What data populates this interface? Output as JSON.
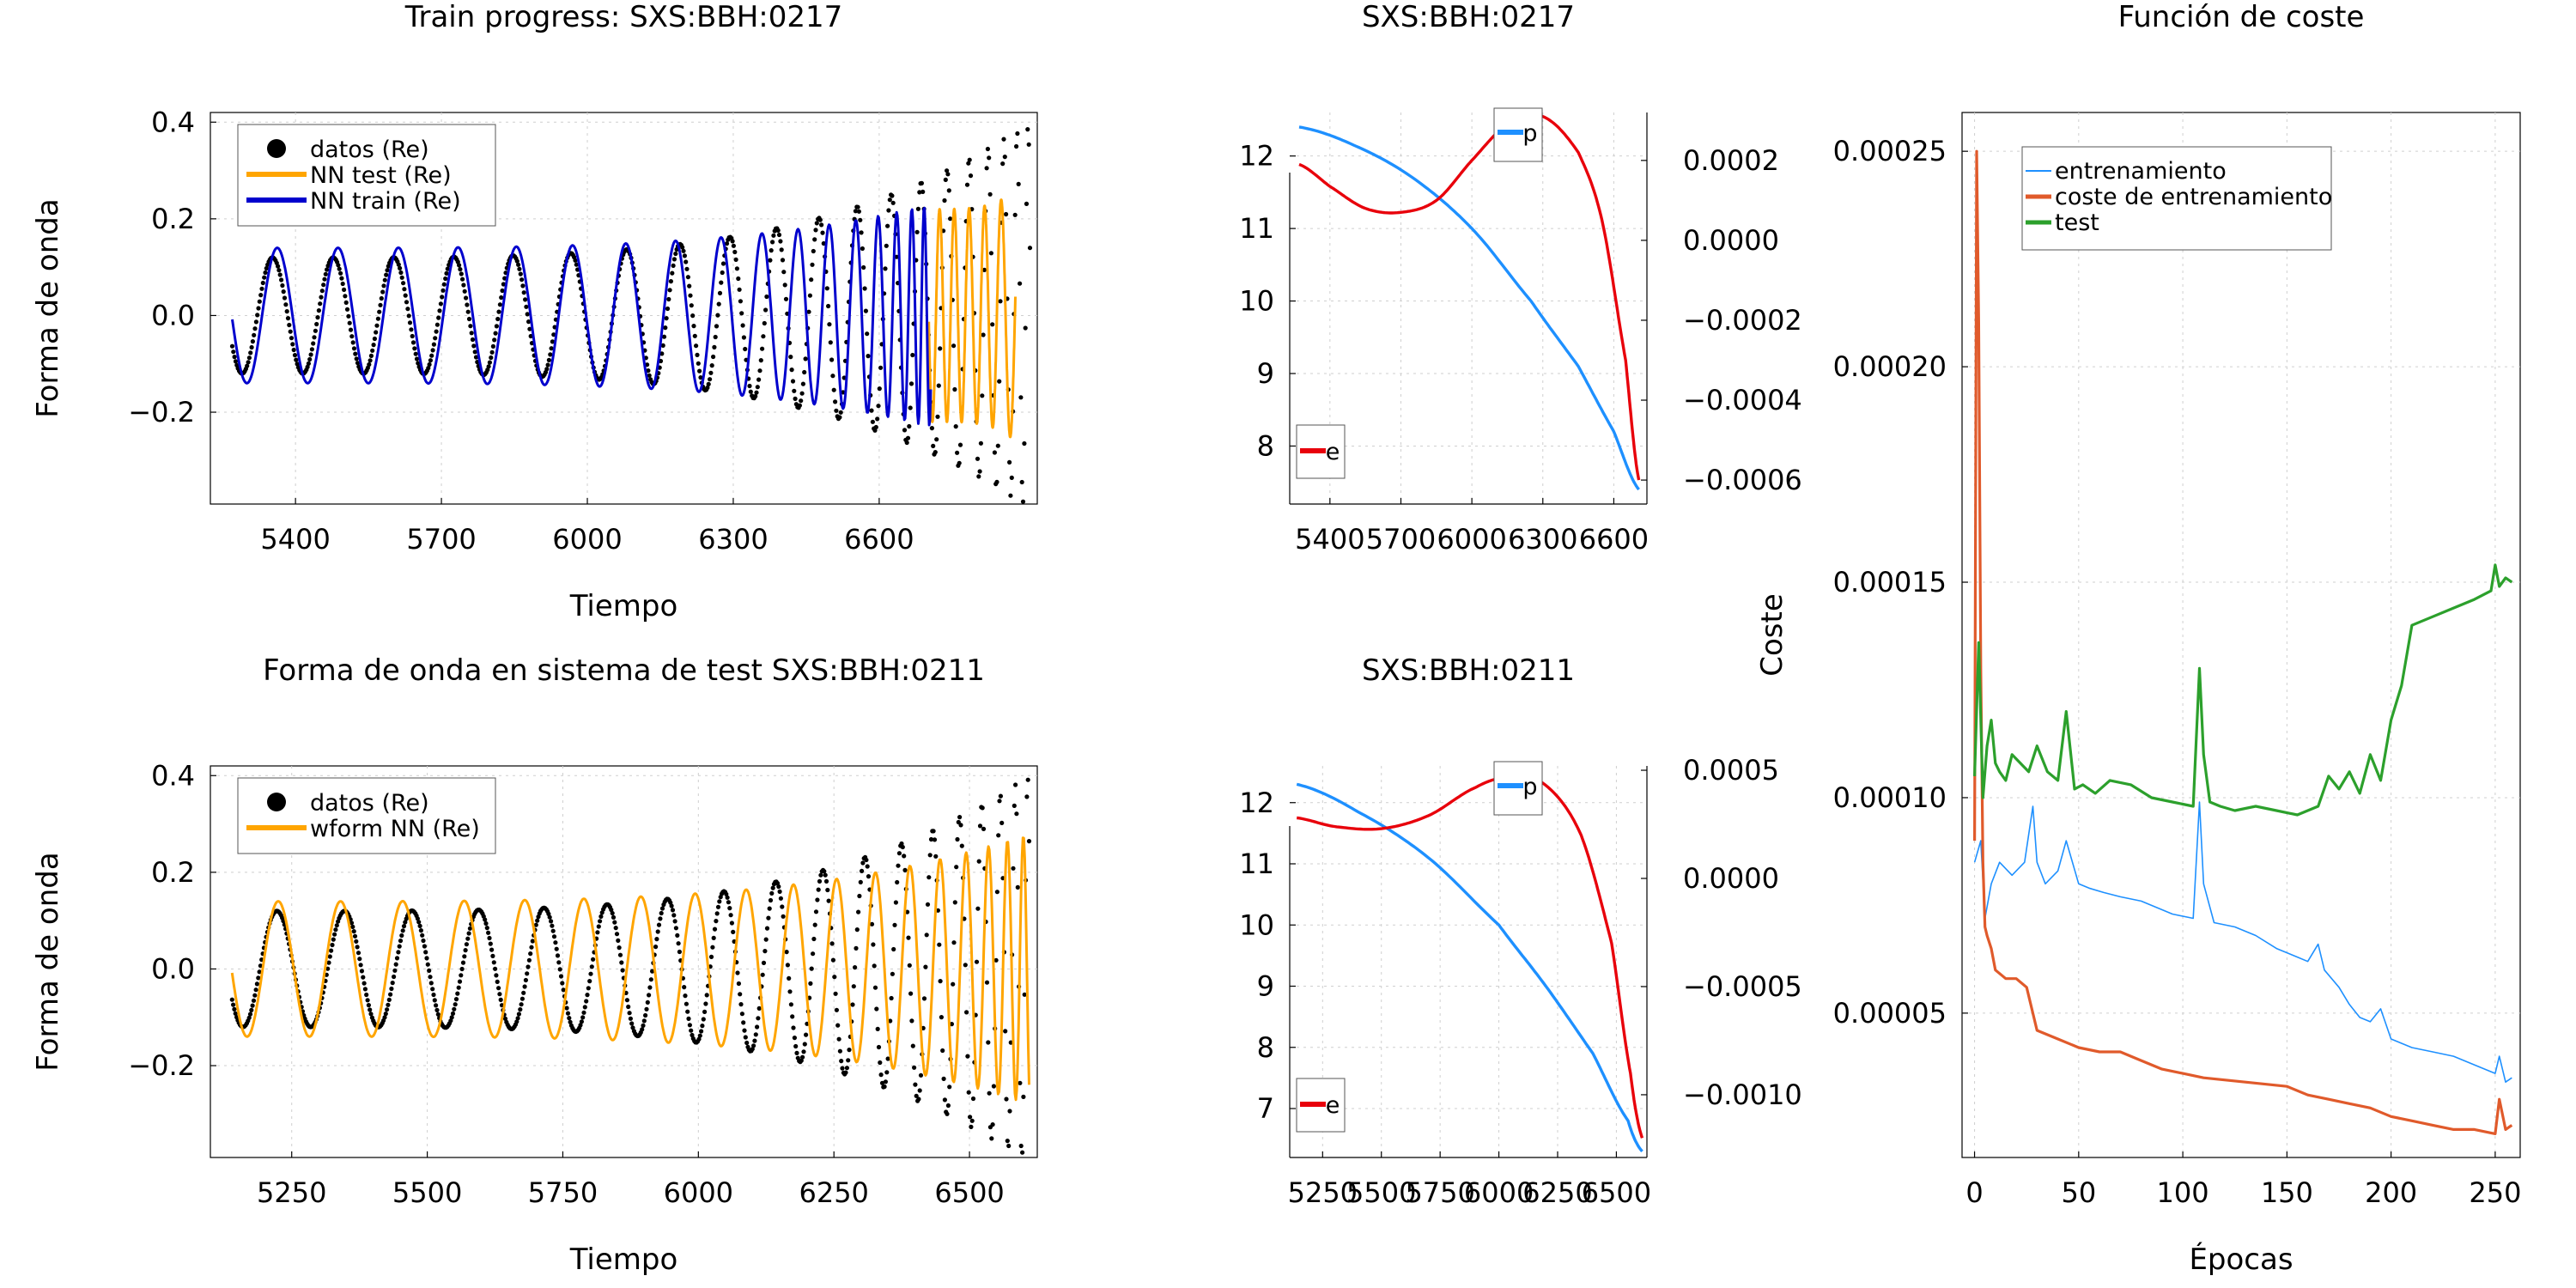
{
  "chart_data": [
    {
      "type": "line",
      "title": "Train progress: SXS:BBH:0217",
      "xlabel": "Tiempo",
      "ylabel": "Forma de onda",
      "xlim": [
        5225,
        6925
      ],
      "ylim": [
        -0.39,
        0.42
      ],
      "xticks": [
        "5400",
        "5700",
        "6000",
        "6300",
        "6600"
      ],
      "yticks": [
        "−0.2",
        "0.0",
        "0.2",
        "0.4"
      ],
      "grid": true,
      "legend_position": "top-left",
      "legend": [
        "datos (Re)",
        "NN test (Re)",
        "NN train (Re)"
      ],
      "series": [
        {
          "name": "datos (Re)",
          "kind": "points",
          "color": "#000000",
          "x_range": [
            5270,
            6910
          ],
          "amplitude": [
            0.12,
            0.4
          ],
          "periods": [
            125,
            20
          ]
        },
        {
          "name": "NN test (Re)",
          "kind": "line",
          "color": "#FFA500",
          "x_range": [
            6702,
            6880
          ],
          "amplitude": [
            0.22,
            0.26
          ],
          "periods": [
            30,
            40
          ]
        },
        {
          "name": "NN train (Re)",
          "kind": "line",
          "color": "#0000CD",
          "x_range": [
            5270,
            6706
          ],
          "amplitude": [
            0.14,
            0.23
          ],
          "periods": [
            125,
            20
          ]
        }
      ]
    },
    {
      "type": "line",
      "title": "SXS:BBH:0217",
      "xlim": [
        5230,
        6740
      ],
      "xticks": [
        "5400",
        "5700",
        "6000",
        "6300",
        "6600"
      ],
      "ylim_left": [
        7.2,
        12.6
      ],
      "yticks_left": [
        "8",
        "9",
        "10",
        "11",
        "12"
      ],
      "ylim_right": [
        -0.00066,
        0.00032
      ],
      "yticks_right": [
        "0.0002",
        "0.0000",
        "−0.0002",
        "−0.0004",
        "−0.0006"
      ],
      "grid": true,
      "legend": [
        "p",
        "e"
      ],
      "series": [
        {
          "name": "p",
          "color": "#1E90FF",
          "axis": "left",
          "x": [
            5270,
            5500,
            5750,
            6000,
            6250,
            6450,
            6600,
            6706
          ],
          "y": [
            12.4,
            12.15,
            11.7,
            11.0,
            10.0,
            9.1,
            8.2,
            7.4
          ]
        },
        {
          "name": "e",
          "color": "#E8000B",
          "axis": "right",
          "x": [
            5270,
            5400,
            5550,
            5700,
            5850,
            6000,
            6150,
            6300,
            6450,
            6550,
            6650,
            6706
          ],
          "y": [
            0.00019,
            0.000135,
            8e-05,
            7e-05,
            0.0001,
            0.0002,
            0.00029,
            0.00031,
            0.00022,
            5e-05,
            -0.0003,
            -0.0006
          ]
        }
      ]
    },
    {
      "type": "line",
      "title": "Forma de onda en sistema de test SXS:BBH:0211",
      "xlabel": "Tiempo",
      "ylabel": "Forma de onda",
      "xlim": [
        5100,
        6625
      ],
      "ylim": [
        -0.39,
        0.42
      ],
      "xticks": [
        "5250",
        "5500",
        "5750",
        "6000",
        "6250",
        "6500"
      ],
      "yticks": [
        "−0.2",
        "0.0",
        "0.2",
        "0.4"
      ],
      "grid": true,
      "legend_position": "top-left",
      "legend": [
        "datos (Re)",
        "wform NN (Re)"
      ],
      "series": [
        {
          "name": "datos (Re)",
          "kind": "points",
          "color": "#000000",
          "x_range": [
            5140,
            6610
          ],
          "amplitude": [
            0.12,
            0.4
          ],
          "periods": [
            125,
            20
          ]
        },
        {
          "name": "wform NN (Re)",
          "kind": "line",
          "color": "#FFA500",
          "x_range": [
            5140,
            6610
          ],
          "amplitude": [
            0.14,
            0.28
          ],
          "periods": [
            115,
            25
          ]
        }
      ]
    },
    {
      "type": "line",
      "title": "SXS:BBH:0211",
      "xlim": [
        5110,
        6630
      ],
      "xticks": [
        "5250",
        "5500",
        "5750",
        "6000",
        "6250",
        "6500"
      ],
      "ylim_left": [
        6.2,
        12.6
      ],
      "yticks_left": [
        "7",
        "8",
        "9",
        "10",
        "11",
        "12"
      ],
      "ylim_right": [
        -0.00129,
        0.00052
      ],
      "yticks_right": [
        "0.0005",
        "0.0000",
        "−0.0005",
        "−0.0010"
      ],
      "grid": true,
      "legend": [
        "p",
        "e"
      ],
      "series": [
        {
          "name": "p",
          "color": "#1E90FF",
          "axis": "left",
          "x": [
            5140,
            5400,
            5700,
            6000,
            6200,
            6400,
            6550,
            6610
          ],
          "y": [
            12.3,
            11.85,
            11.1,
            10.0,
            9.0,
            7.9,
            6.8,
            6.3
          ]
        },
        {
          "name": "e",
          "color": "#E8000B",
          "axis": "right",
          "x": [
            5140,
            5300,
            5500,
            5700,
            5900,
            6050,
            6200,
            6350,
            6480,
            6560,
            6610
          ],
          "y": [
            0.00028,
            0.00024,
            0.00023,
            0.00029,
            0.00042,
            0.00047,
            0.00043,
            0.0002,
            -0.0003,
            -0.0009,
            -0.0012
          ]
        }
      ]
    },
    {
      "type": "line",
      "title": "Función de coste",
      "xlabel": "Épocas",
      "ylabel": "Coste",
      "xlim": [
        -6,
        262
      ],
      "ylim": [
        1.65e-05,
        0.000259
      ],
      "xticks": [
        "0",
        "50",
        "100",
        "150",
        "200",
        "250"
      ],
      "yticks": [
        "0.00005",
        "0.00010",
        "0.00015",
        "0.00020",
        "0.00025"
      ],
      "grid": true,
      "legend_position": "top-right",
      "legend": [
        "entrenamiento",
        "coste de entrenamiento",
        "test"
      ],
      "series": [
        {
          "name": "entrenamiento",
          "color": "#1E90FF",
          "x": [
            0,
            3,
            5,
            8,
            12,
            18,
            24,
            28,
            30,
            34,
            40,
            44,
            50,
            55,
            62,
            70,
            80,
            95,
            105,
            108,
            110,
            115,
            125,
            135,
            145,
            155,
            160,
            165,
            168,
            175,
            180,
            185,
            190,
            195,
            200,
            210,
            220,
            230,
            240,
            250,
            252,
            255,
            258
          ],
          "y": [
            8.5e-05,
            9e-05,
            7.2e-05,
            8e-05,
            8.5e-05,
            8.2e-05,
            8.5e-05,
            9.8e-05,
            8.5e-05,
            8e-05,
            8.3e-05,
            9e-05,
            8e-05,
            7.9e-05,
            7.8e-05,
            7.7e-05,
            7.6e-05,
            7.3e-05,
            7.2e-05,
            9.9e-05,
            8e-05,
            7.1e-05,
            7e-05,
            6.8e-05,
            6.5e-05,
            6.3e-05,
            6.2e-05,
            6.6e-05,
            6e-05,
            5.6e-05,
            5.2e-05,
            4.9e-05,
            4.8e-05,
            5.1e-05,
            4.4e-05,
            4.2e-05,
            4.1e-05,
            4e-05,
            3.8e-05,
            3.6e-05,
            4e-05,
            3.4e-05,
            3.5e-05
          ]
        },
        {
          "name": "coste de entrenamiento",
          "color": "#E05A2B",
          "x": [
            0,
            1,
            2,
            3,
            4,
            5,
            6,
            8,
            10,
            15,
            20,
            25,
            30,
            40,
            50,
            60,
            70,
            80,
            90,
            100,
            110,
            130,
            150,
            160,
            170,
            180,
            190,
            200,
            210,
            220,
            230,
            240,
            250,
            252,
            255,
            258
          ],
          "y": [
            9e-05,
            0.00025,
            0.00021,
            0.00013,
            8.5e-05,
            7e-05,
            6.8e-05,
            6.5e-05,
            6e-05,
            5.8e-05,
            5.8e-05,
            5.6e-05,
            4.6e-05,
            4.4e-05,
            4.2e-05,
            4.1e-05,
            4.1e-05,
            3.9e-05,
            3.7e-05,
            3.6e-05,
            3.5e-05,
            3.4e-05,
            3.3e-05,
            3.1e-05,
            3e-05,
            2.9e-05,
            2.8e-05,
            2.6e-05,
            2.5e-05,
            2.4e-05,
            2.3e-05,
            2.3e-05,
            2.2e-05,
            3e-05,
            2.3e-05,
            2.4e-05
          ]
        },
        {
          "name": "test",
          "color": "#2CA02C",
          "x": [
            0,
            2,
            4,
            6,
            8,
            10,
            12,
            15,
            18,
            22,
            26,
            30,
            35,
            40,
            44,
            48,
            52,
            58,
            65,
            75,
            85,
            95,
            105,
            108,
            110,
            113,
            118,
            125,
            135,
            145,
            155,
            165,
            170,
            175,
            180,
            185,
            190,
            195,
            200,
            205,
            210,
            220,
            230,
            240,
            248,
            250,
            252,
            255,
            258
          ],
          "y": [
            0.000105,
            0.000136,
            0.0001,
            0.000112,
            0.000118,
            0.000108,
            0.000106,
            0.000104,
            0.00011,
            0.000108,
            0.000106,
            0.000112,
            0.000106,
            0.000104,
            0.00012,
            0.000102,
            0.000103,
            0.000101,
            0.000104,
            0.000103,
            0.0001,
            9.9e-05,
            9.8e-05,
            0.00013,
            0.00011,
            9.9e-05,
            9.8e-05,
            9.7e-05,
            9.8e-05,
            9.7e-05,
            9.6e-05,
            9.8e-05,
            0.000105,
            0.000102,
            0.000106,
            0.000101,
            0.00011,
            0.000104,
            0.000118,
            0.000126,
            0.00014,
            0.000142,
            0.000144,
            0.000146,
            0.000148,
            0.000154,
            0.000149,
            0.000151,
            0.00015
          ]
        }
      ]
    }
  ]
}
